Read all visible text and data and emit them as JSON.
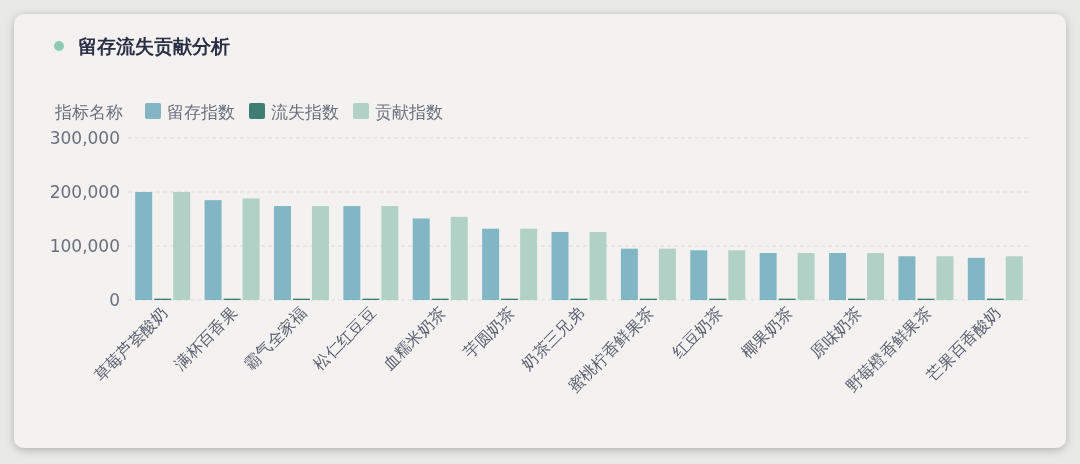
{
  "chart_data": {
    "type": "bar",
    "title": "留存流失贡献分析",
    "legend_title": "指标名称",
    "legend": "top left",
    "grid": "y",
    "categories": [
      "草莓芦荟酸奶",
      "满杯百香果",
      "霸气全家福",
      "松仁红豆豆",
      "血糯米奶茶",
      "芋圆奶茶",
      "奶茶三兄弟",
      "蜜桃柠香鲜果茶",
      "红豆奶茶",
      "椰果奶茶",
      "原味奶茶",
      "野莓橙香鲜果茶",
      "芒果百香酸奶"
    ],
    "ylim": [
      0,
      300000
    ],
    "yticks": [
      {
        "value": 0,
        "label": "0"
      },
      {
        "value": 100000,
        "label": "100,000"
      },
      {
        "value": 200000,
        "label": "200,000"
      },
      {
        "value": 300000,
        "label": "300,000"
      }
    ],
    "series": [
      {
        "name": "留存指数",
        "color": "#83b6c4",
        "values": [
          200000,
          185000,
          174000,
          174000,
          151000,
          132000,
          126000,
          95000,
          92000,
          87000,
          87000,
          81000,
          78000
        ]
      },
      {
        "name": "流失指数",
        "color": "#3f7f73",
        "values": [
          2500,
          2500,
          2500,
          2500,
          2500,
          2500,
          2500,
          2500,
          2500,
          2500,
          2500,
          2500,
          2500
        ]
      },
      {
        "name": "贡献指数",
        "color": "#b1d1c7",
        "values": [
          200000,
          188000,
          174000,
          174000,
          154000,
          132000,
          126000,
          95000,
          92000,
          87000,
          87000,
          81000,
          81000
        ]
      }
    ]
  }
}
